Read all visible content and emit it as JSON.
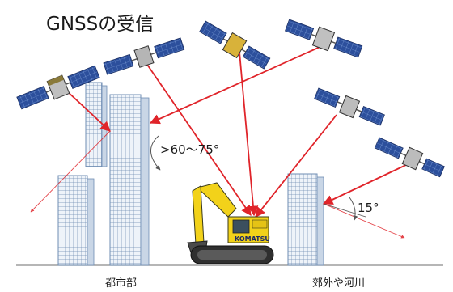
{
  "title": "GNSSの受信",
  "angles": {
    "city": ">60〜75°",
    "suburb": "15°"
  },
  "ground_labels": {
    "city": "都市部",
    "suburb": "郊外や河川"
  },
  "excavator_brand": "KOMATSU",
  "colors": {
    "signal_line": "#e0242a",
    "building_face": "#dfe8f2",
    "building_grid": "#6f8db3",
    "solar_panel": "#2c4f9c",
    "excavator_body": "#f2d21a"
  }
}
